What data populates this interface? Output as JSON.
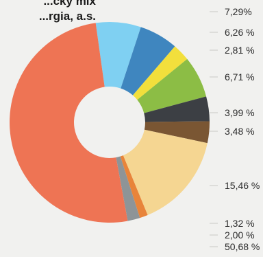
{
  "title": [
    "...cký mix",
    "...rgia, a.s."
  ],
  "chart_data": {
    "type": "pie",
    "title": "",
    "donut": true,
    "legend": "right",
    "slices": [
      {
        "value": 7.29,
        "label": "7,29%",
        "color": "#7fd0f2"
      },
      {
        "value": 6.26,
        "label": "6,26 %",
        "color": "#3f86bf"
      },
      {
        "value": 2.81,
        "label": "2,81 %",
        "color": "#f2df3c"
      },
      {
        "value": 6.71,
        "label": "6,71 %",
        "color": "#8cbd45"
      },
      {
        "value": 3.99,
        "label": "3,99 %",
        "color": "#3c3f44"
      },
      {
        "value": 3.48,
        "label": "3,48 %",
        "color": "#7a5633"
      },
      {
        "value": 15.46,
        "label": "15,46 %",
        "color": "#f5d692"
      },
      {
        "value": 1.32,
        "label": "1,32 %",
        "color": "#e8843a"
      },
      {
        "value": 2.0,
        "label": "2,00 %",
        "color": "#8e9497"
      },
      {
        "value": 50.68,
        "label": "50,68 %",
        "color": "#ee7454"
      }
    ]
  }
}
